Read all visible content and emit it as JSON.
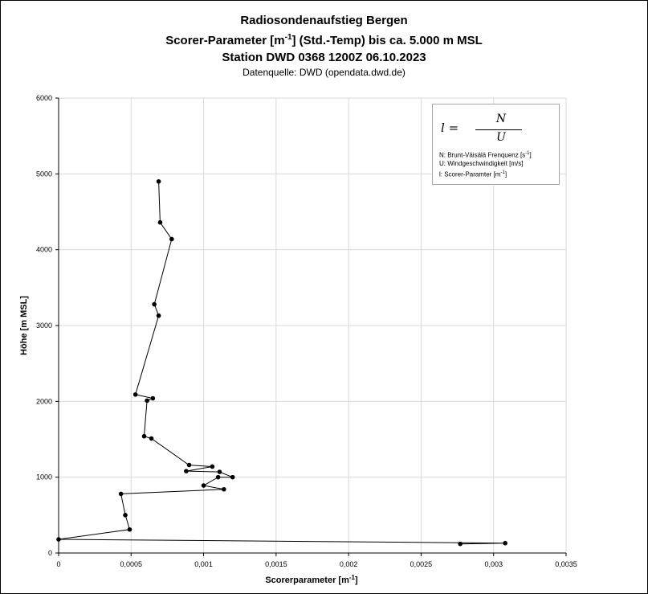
{
  "titles": {
    "line1": "Radiosondenaufstieg Bergen",
    "line2_prefix": "Scorer-Parameter [m",
    "line2_sup": "-1",
    "line2_suffix": "] (Std.-Temp) bis ca. 5.000 m MSL",
    "line3": "Station DWD 0368 1200Z 06.10.2023",
    "line4": "Datenquelle: DWD (opendata.dwd.de)"
  },
  "legend": {
    "formula_lhs": "l =",
    "formula_numerator": "N",
    "formula_denominator": "U",
    "line_n_prefix": "N: Brunt-Väisälä Frenquenz [s",
    "line_n_sup": "-1",
    "line_n_suffix": "]",
    "line_u": "U: Windgeschwindigkeit [m/s]",
    "line_l_prefix": "l: Scorer-Paramter [m",
    "line_l_sup": "-1",
    "line_l_suffix": "]"
  },
  "chart_data": {
    "type": "scatter",
    "mode": "lines+markers",
    "xlabel_prefix": "Scorerparameter [m",
    "xlabel_sup": "-1",
    "xlabel_suffix": "]",
    "ylabel": "Höhe [m MSL]",
    "xlim": [
      0,
      0.0035
    ],
    "ylim": [
      0,
      6000
    ],
    "x_ticks": [
      0,
      0.0005,
      0.001,
      0.0015,
      0.002,
      0.0025,
      0.003,
      0.0035
    ],
    "x_tick_labels": [
      "0",
      "0,0005",
      "0,001",
      "0,0015",
      "0,002",
      "0,0025",
      "0,003",
      "0,0035"
    ],
    "y_ticks": [
      0,
      1000,
      2000,
      3000,
      4000,
      5000,
      6000
    ],
    "y_tick_labels": [
      "0",
      "1000",
      "2000",
      "3000",
      "4000",
      "5000",
      "6000"
    ],
    "grid": true,
    "marker_color": "#000000",
    "line_color": "#000000",
    "series": [
      {
        "x": [
          0.00277,
          0.00308,
          0.0,
          0.00049,
          0.00046,
          0.00043,
          0.00114,
          0.001,
          0.0011,
          0.0012,
          0.00111,
          0.00088,
          0.00106,
          0.0009,
          0.00064,
          0.00059,
          0.00061,
          0.00065,
          0.00053,
          0.00069,
          0.00066,
          0.00078,
          0.0007,
          0.00069
        ],
        "y": [
          120,
          130,
          180,
          310,
          500,
          780,
          840,
          890,
          1000,
          1000,
          1070,
          1080,
          1140,
          1160,
          1510,
          1540,
          2010,
          2040,
          2090,
          3130,
          3280,
          4140,
          4360,
          4900
        ]
      }
    ]
  }
}
